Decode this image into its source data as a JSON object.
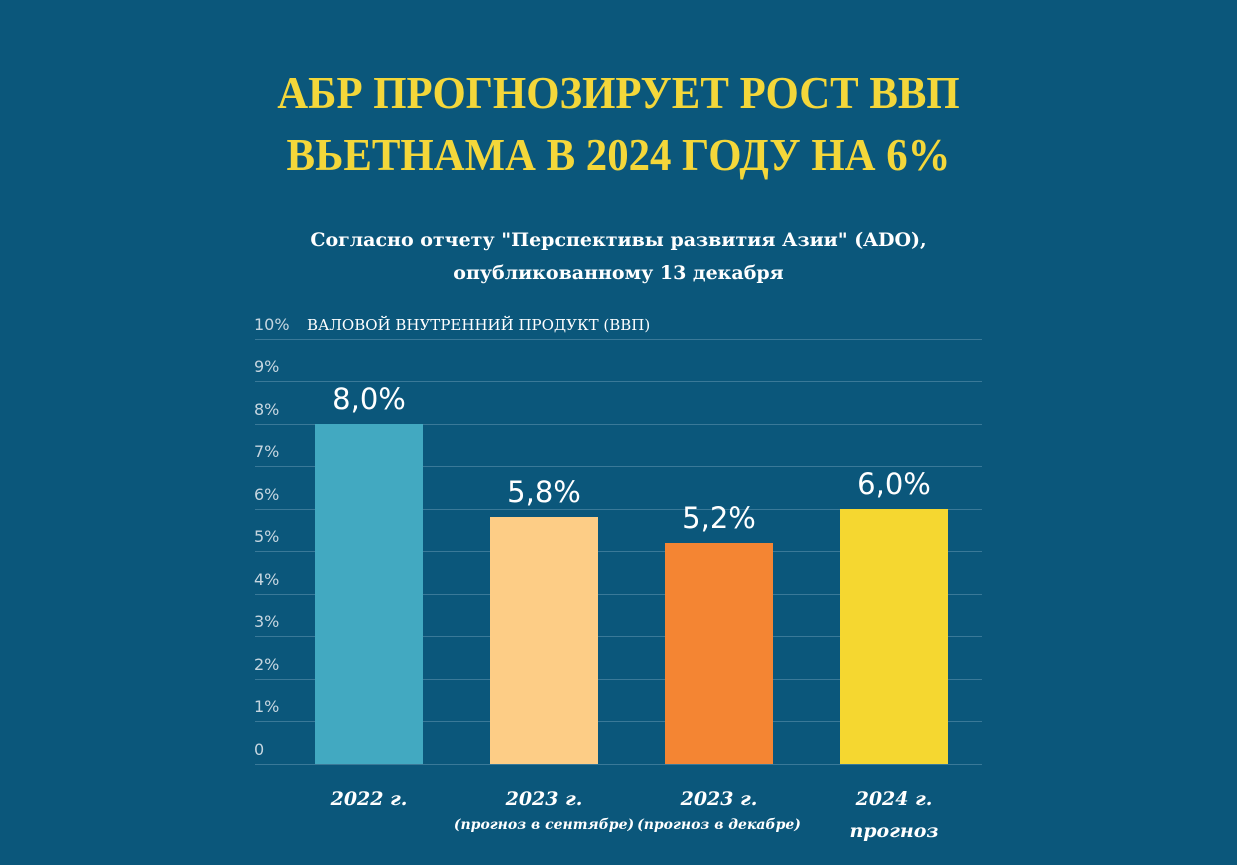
{
  "header": {
    "title_line1": "АБР ПРОГНОЗИРУЕТ РОСТ ВВП",
    "title_line2": "ВЬЕТНАМА В 2024 ГОДУ НА 6%",
    "subtitle_line1": "Согласно отчету \"Перспективы развития Азии\" (ADO),",
    "subtitle_line2": "опубликованному 13 декабря"
  },
  "colors": {
    "background": "#0b577b",
    "title": "#f4d73a",
    "gridline": "#3a7998"
  },
  "chart_data": {
    "type": "bar",
    "title": "АБР ПРОГНОЗИРУЕТ РОСТ ВВП ВЬЕТНАМА В 2024 ГОДУ НА 6%",
    "subtitle": "Согласно отчету \"Перспективы развития Азии\" (ADO), опубликованному 13 декабря",
    "xlabel": "",
    "ylabel": "ВАЛОВОЙ ВНУТРЕННИЙ ПРОДУКТ (ВВП)",
    "ylim": [
      0,
      10
    ],
    "grid": true,
    "legend": "none",
    "yticks": [
      "0",
      "1%",
      "2%",
      "3%",
      "4%",
      "5%",
      "6%",
      "7%",
      "8%",
      "9%",
      "10%"
    ],
    "categories": [
      "2022 г.",
      "2023 г. (прогноз в сентябре)",
      "2023 г. (прогноз в декабре)",
      "2024 г. прогноз"
    ],
    "values": [
      8.0,
      5.8,
      5.2,
      6.0
    ],
    "data_labels": [
      "8,0%",
      "5,8%",
      "5,2%",
      "6,0%"
    ],
    "bar_colors": [
      "#42a9c1",
      "#fdcd86",
      "#f48533",
      "#f5d730"
    ],
    "category_main": [
      "2022 г.",
      "2023 г.",
      "2023 г.",
      "2024 г."
    ],
    "category_sub": [
      "",
      "(прогноз в сентябре)",
      "(прогноз в декабре)",
      "прогноз"
    ]
  }
}
